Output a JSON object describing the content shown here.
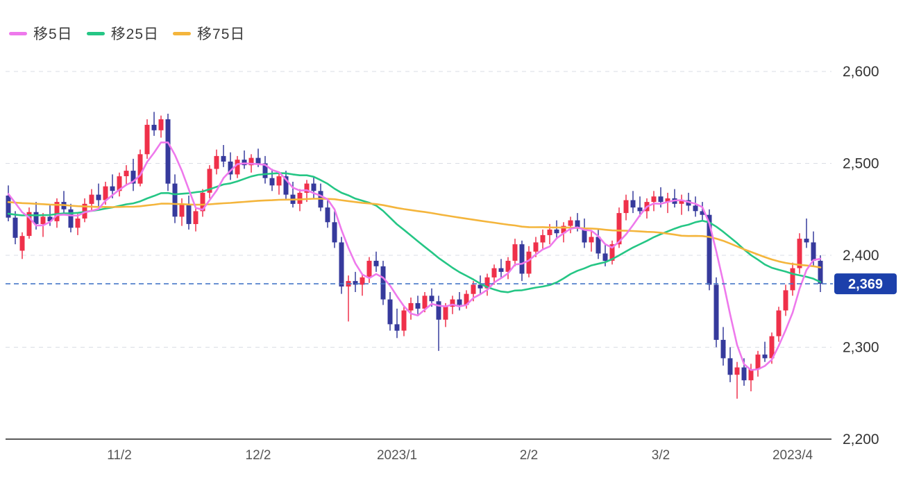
{
  "chart_data": {
    "type": "candlestick",
    "y_ticks": [
      {
        "value": 2200,
        "label": "2,200"
      },
      {
        "value": 2300,
        "label": "2,300"
      },
      {
        "value": 2400,
        "label": "2,400"
      },
      {
        "value": 2500,
        "label": "2,500"
      },
      {
        "value": 2600,
        "label": "2,600"
      }
    ],
    "ylim": [
      2200,
      2600
    ],
    "x_ticks": [
      {
        "index": 16,
        "label": "11/2"
      },
      {
        "index": 36,
        "label": "12/2"
      },
      {
        "index": 56,
        "label": "2023/1"
      },
      {
        "index": 75,
        "label": "2/2"
      },
      {
        "index": 94,
        "label": "3/2"
      },
      {
        "index": 113,
        "label": "2023/4"
      }
    ],
    "last_price": {
      "value": 2369,
      "label": "2,369"
    },
    "colors": {
      "up": "#ef304a",
      "down": "#363a9c",
      "grid": "#d9dde4",
      "axis": "#222222",
      "y_label": "#333333",
      "x_label": "#555555",
      "last_price_line": "#4677c8",
      "last_price_badge": "#1c40ab",
      "last_price_text": "#ffffff"
    },
    "moving_averages": [
      {
        "key": "ma5",
        "window": 5,
        "label": "移5日",
        "color": "#ee79ec"
      },
      {
        "key": "ma25",
        "window": 25,
        "label": "移25日",
        "color": "#25c685"
      },
      {
        "key": "ma75",
        "window": 75,
        "label": "移75日",
        "color": "#f4b53c"
      }
    ],
    "ma_seed_closes": [
      2462,
      2464,
      2466,
      2468,
      2470,
      2472,
      2474,
      2476,
      2478,
      2480,
      2482,
      2481,
      2480,
      2479,
      2478,
      2477,
      2476,
      2475,
      2474,
      2473,
      2472,
      2471,
      2470,
      2469,
      2468,
      2467,
      2466,
      2465,
      2464,
      2463,
      2462,
      2461,
      2460,
      2459,
      2458,
      2457,
      2456,
      2455,
      2454,
      2453,
      2452,
      2451,
      2450,
      2449,
      2448,
      2447,
      2446,
      2445,
      2444,
      2443,
      2445,
      2442,
      2440,
      2438,
      2436,
      2434,
      2432,
      2430,
      2428,
      2430,
      2432,
      2434,
      2436,
      2438,
      2440,
      2444,
      2448,
      2452,
      2456,
      2462,
      2468,
      2472,
      2475,
      2478
    ],
    "candles": [
      [
        2465,
        2476,
        2437,
        2441
      ],
      [
        2441,
        2448,
        2412,
        2419
      ],
      [
        2405,
        2425,
        2396,
        2421
      ],
      [
        2421,
        2452,
        2418,
        2447
      ],
      [
        2447,
        2458,
        2428,
        2434
      ],
      [
        2434,
        2446,
        2420,
        2442
      ],
      [
        2442,
        2455,
        2432,
        2437
      ],
      [
        2437,
        2462,
        2430,
        2458
      ],
      [
        2458,
        2470,
        2445,
        2450
      ],
      [
        2450,
        2456,
        2425,
        2430
      ],
      [
        2430,
        2445,
        2422,
        2440
      ],
      [
        2440,
        2462,
        2436,
        2456
      ],
      [
        2456,
        2472,
        2448,
        2466
      ],
      [
        2466,
        2478,
        2452,
        2460
      ],
      [
        2460,
        2480,
        2455,
        2475
      ],
      [
        2475,
        2488,
        2462,
        2470
      ],
      [
        2470,
        2490,
        2464,
        2486
      ],
      [
        2486,
        2498,
        2476,
        2492
      ],
      [
        2492,
        2505,
        2470,
        2478
      ],
      [
        2478,
        2515,
        2475,
        2510
      ],
      [
        2510,
        2548,
        2505,
        2542
      ],
      [
        2542,
        2556,
        2530,
        2536
      ],
      [
        2536,
        2552,
        2528,
        2548
      ],
      [
        2548,
        2554,
        2470,
        2478
      ],
      [
        2478,
        2488,
        2435,
        2442
      ],
      [
        2442,
        2462,
        2432,
        2456
      ],
      [
        2456,
        2465,
        2428,
        2434
      ],
      [
        2434,
        2452,
        2426,
        2448
      ],
      [
        2448,
        2472,
        2442,
        2468
      ],
      [
        2468,
        2498,
        2462,
        2494
      ],
      [
        2494,
        2515,
        2488,
        2508
      ],
      [
        2508,
        2520,
        2496,
        2502
      ],
      [
        2502,
        2512,
        2482,
        2488
      ],
      [
        2488,
        2508,
        2484,
        2504
      ],
      [
        2504,
        2514,
        2494,
        2498
      ],
      [
        2498,
        2510,
        2490,
        2506
      ],
      [
        2506,
        2516,
        2496,
        2500
      ],
      [
        2500,
        2508,
        2478,
        2484
      ],
      [
        2484,
        2494,
        2470,
        2476
      ],
      [
        2476,
        2490,
        2466,
        2486
      ],
      [
        2486,
        2492,
        2460,
        2466
      ],
      [
        2466,
        2480,
        2452,
        2456
      ],
      [
        2456,
        2472,
        2448,
        2468
      ],
      [
        2468,
        2482,
        2458,
        2478
      ],
      [
        2478,
        2486,
        2462,
        2470
      ],
      [
        2470,
        2478,
        2448,
        2452
      ],
      [
        2452,
        2462,
        2430,
        2436
      ],
      [
        2436,
        2448,
        2408,
        2414
      ],
      [
        2414,
        2420,
        2358,
        2366
      ],
      [
        2366,
        2378,
        2328,
        2372
      ],
      [
        2372,
        2382,
        2360,
        2368
      ],
      [
        2368,
        2380,
        2356,
        2376
      ],
      [
        2376,
        2398,
        2370,
        2394
      ],
      [
        2394,
        2404,
        2382,
        2388
      ],
      [
        2388,
        2394,
        2346,
        2352
      ],
      [
        2352,
        2360,
        2318,
        2325
      ],
      [
        2325,
        2342,
        2310,
        2318
      ],
      [
        2318,
        2345,
        2312,
        2340
      ],
      [
        2340,
        2354,
        2330,
        2348
      ],
      [
        2348,
        2356,
        2336,
        2342
      ],
      [
        2342,
        2360,
        2338,
        2356
      ],
      [
        2356,
        2364,
        2344,
        2350
      ],
      [
        2350,
        2356,
        2296,
        2330
      ],
      [
        2330,
        2348,
        2322,
        2344
      ],
      [
        2344,
        2356,
        2336,
        2352
      ],
      [
        2352,
        2360,
        2340,
        2346
      ],
      [
        2346,
        2362,
        2342,
        2358
      ],
      [
        2358,
        2372,
        2350,
        2368
      ],
      [
        2368,
        2378,
        2358,
        2364
      ],
      [
        2364,
        2380,
        2356,
        2376
      ],
      [
        2376,
        2390,
        2368,
        2386
      ],
      [
        2386,
        2396,
        2376,
        2382
      ],
      [
        2382,
        2398,
        2374,
        2394
      ],
      [
        2394,
        2418,
        2388,
        2412
      ],
      [
        2412,
        2416,
        2372,
        2380
      ],
      [
        2380,
        2410,
        2376,
        2404
      ],
      [
        2404,
        2420,
        2398,
        2414
      ],
      [
        2414,
        2428,
        2406,
        2422
      ],
      [
        2422,
        2434,
        2412,
        2428
      ],
      [
        2428,
        2438,
        2418,
        2424
      ],
      [
        2424,
        2436,
        2414,
        2432
      ],
      [
        2432,
        2442,
        2424,
        2438
      ],
      [
        2438,
        2446,
        2426,
        2430
      ],
      [
        2430,
        2440,
        2408,
        2414
      ],
      [
        2414,
        2426,
        2404,
        2420
      ],
      [
        2420,
        2428,
        2396,
        2402
      ],
      [
        2402,
        2412,
        2388,
        2394
      ],
      [
        2394,
        2416,
        2390,
        2412
      ],
      [
        2412,
        2452,
        2408,
        2446
      ],
      [
        2446,
        2466,
        2438,
        2460
      ],
      [
        2460,
        2470,
        2446,
        2452
      ],
      [
        2452,
        2464,
        2442,
        2448
      ],
      [
        2448,
        2462,
        2440,
        2458
      ],
      [
        2458,
        2470,
        2448,
        2464
      ],
      [
        2464,
        2474,
        2452,
        2458
      ],
      [
        2458,
        2468,
        2446,
        2462
      ],
      [
        2462,
        2472,
        2452,
        2456
      ],
      [
        2456,
        2466,
        2444,
        2460
      ],
      [
        2460,
        2468,
        2448,
        2454
      ],
      [
        2454,
        2464,
        2442,
        2448
      ],
      [
        2448,
        2458,
        2438,
        2444
      ],
      [
        2444,
        2450,
        2362,
        2368
      ],
      [
        2368,
        2376,
        2300,
        2308
      ],
      [
        2308,
        2322,
        2280,
        2288
      ],
      [
        2288,
        2300,
        2262,
        2270
      ],
      [
        2270,
        2284,
        2244,
        2278
      ],
      [
        2278,
        2288,
        2258,
        2264
      ],
      [
        2264,
        2282,
        2252,
        2276
      ],
      [
        2276,
        2296,
        2268,
        2292
      ],
      [
        2292,
        2306,
        2284,
        2288
      ],
      [
        2288,
        2316,
        2282,
        2312
      ],
      [
        2312,
        2344,
        2306,
        2340
      ],
      [
        2340,
        2368,
        2334,
        2362
      ],
      [
        2362,
        2392,
        2356,
        2386
      ],
      [
        2386,
        2424,
        2380,
        2418
      ],
      [
        2418,
        2440,
        2408,
        2414
      ],
      [
        2414,
        2426,
        2388,
        2394
      ],
      [
        2394,
        2400,
        2360,
        2369
      ]
    ]
  }
}
